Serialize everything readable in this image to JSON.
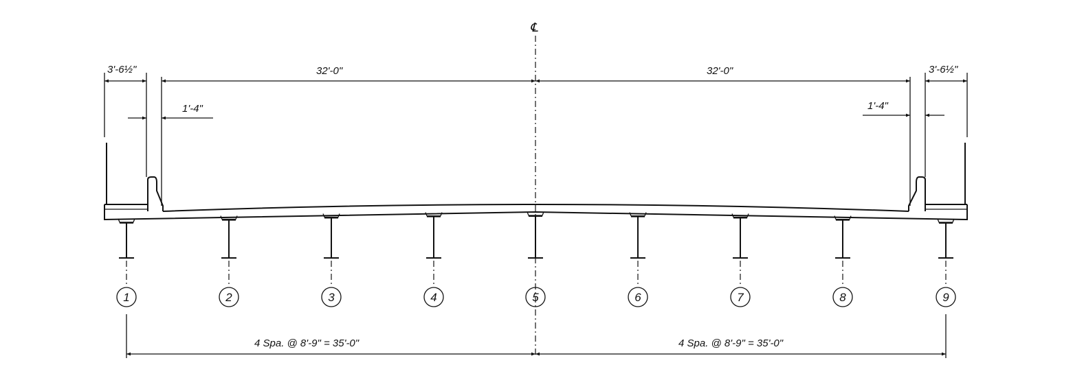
{
  "centerline_symbol": "℄",
  "dimensions": {
    "overhang_left": "3'-6½\"",
    "roadway_left": "32'-0\"",
    "roadway_right": "32'-0\"",
    "overhang_right": "3'-6½\"",
    "barrier_left": "1'-4\"",
    "barrier_right": "1'-4\"",
    "girder_spacing_left": "4 Spa. @ 8'-9\" = 35'-0\"",
    "girder_spacing_right": "4 Spa. @ 8'-9\" = 35'-0\""
  },
  "girders": [
    "1",
    "2",
    "3",
    "4",
    "5",
    "6",
    "7",
    "8",
    "9"
  ]
}
